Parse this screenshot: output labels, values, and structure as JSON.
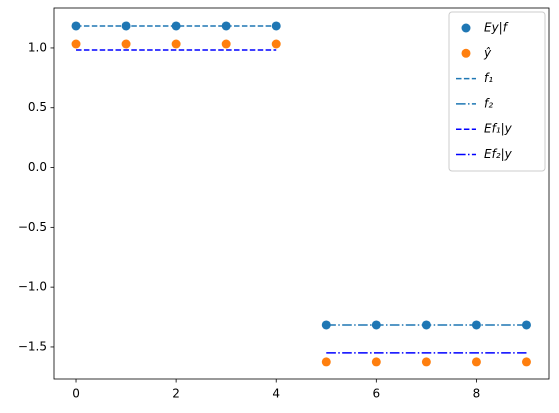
{
  "chart_data": {
    "type": "scatter",
    "x": [
      0,
      1,
      2,
      3,
      4,
      5,
      6,
      7,
      8,
      9
    ],
    "xlim": [
      -0.44,
      9.45
    ],
    "xticks": [
      0,
      2,
      4,
      6,
      8
    ],
    "ylim": [
      -1.768,
      1.334
    ],
    "yticks": [
      {
        "value": -1.5,
        "label": "−1.5"
      },
      {
        "value": -1.0,
        "label": "−1.0"
      },
      {
        "value": -0.5,
        "label": "−0.5"
      },
      {
        "value": 0,
        "label": "0.0"
      },
      {
        "value": 0.5,
        "label": "0.5"
      },
      {
        "value": 1.0,
        "label": "1.0"
      }
    ],
    "legend": "upper right",
    "series": [
      {
        "name": "Ey|f",
        "color": "#1f77b4",
        "style": "marker",
        "values": [
          1.184,
          1.184,
          1.184,
          1.184,
          1.184,
          -1.316,
          -1.316,
          -1.316,
          -1.316,
          -1.316
        ]
      },
      {
        "name": "ŷ",
        "color": "#ff7f0e",
        "style": "marker",
        "values": [
          1.033,
          1.033,
          1.033,
          1.033,
          1.033,
          -1.625,
          -1.625,
          -1.625,
          -1.625,
          -1.625
        ]
      },
      {
        "name": "f₁",
        "color": "#1f77b4",
        "style": "dashed",
        "values": [
          1.184,
          1.184,
          1.184,
          1.184,
          1.184,
          null,
          null,
          null,
          null,
          null
        ]
      },
      {
        "name": "f₂",
        "color": "#1f77b4",
        "style": "dashdot",
        "values": [
          null,
          null,
          null,
          null,
          null,
          -1.316,
          -1.316,
          -1.316,
          -1.316,
          -1.316
        ]
      },
      {
        "name": "Ef₁|y",
        "color": "#0000ff",
        "style": "dashed",
        "values": [
          0.983,
          0.983,
          0.983,
          0.983,
          0.983,
          null,
          null,
          null,
          null,
          null
        ]
      },
      {
        "name": "Ef₂|y",
        "color": "#0000ff",
        "style": "dashdot",
        "values": [
          null,
          null,
          null,
          null,
          null,
          -1.55,
          -1.55,
          -1.55,
          -1.55,
          -1.55
        ]
      }
    ]
  }
}
